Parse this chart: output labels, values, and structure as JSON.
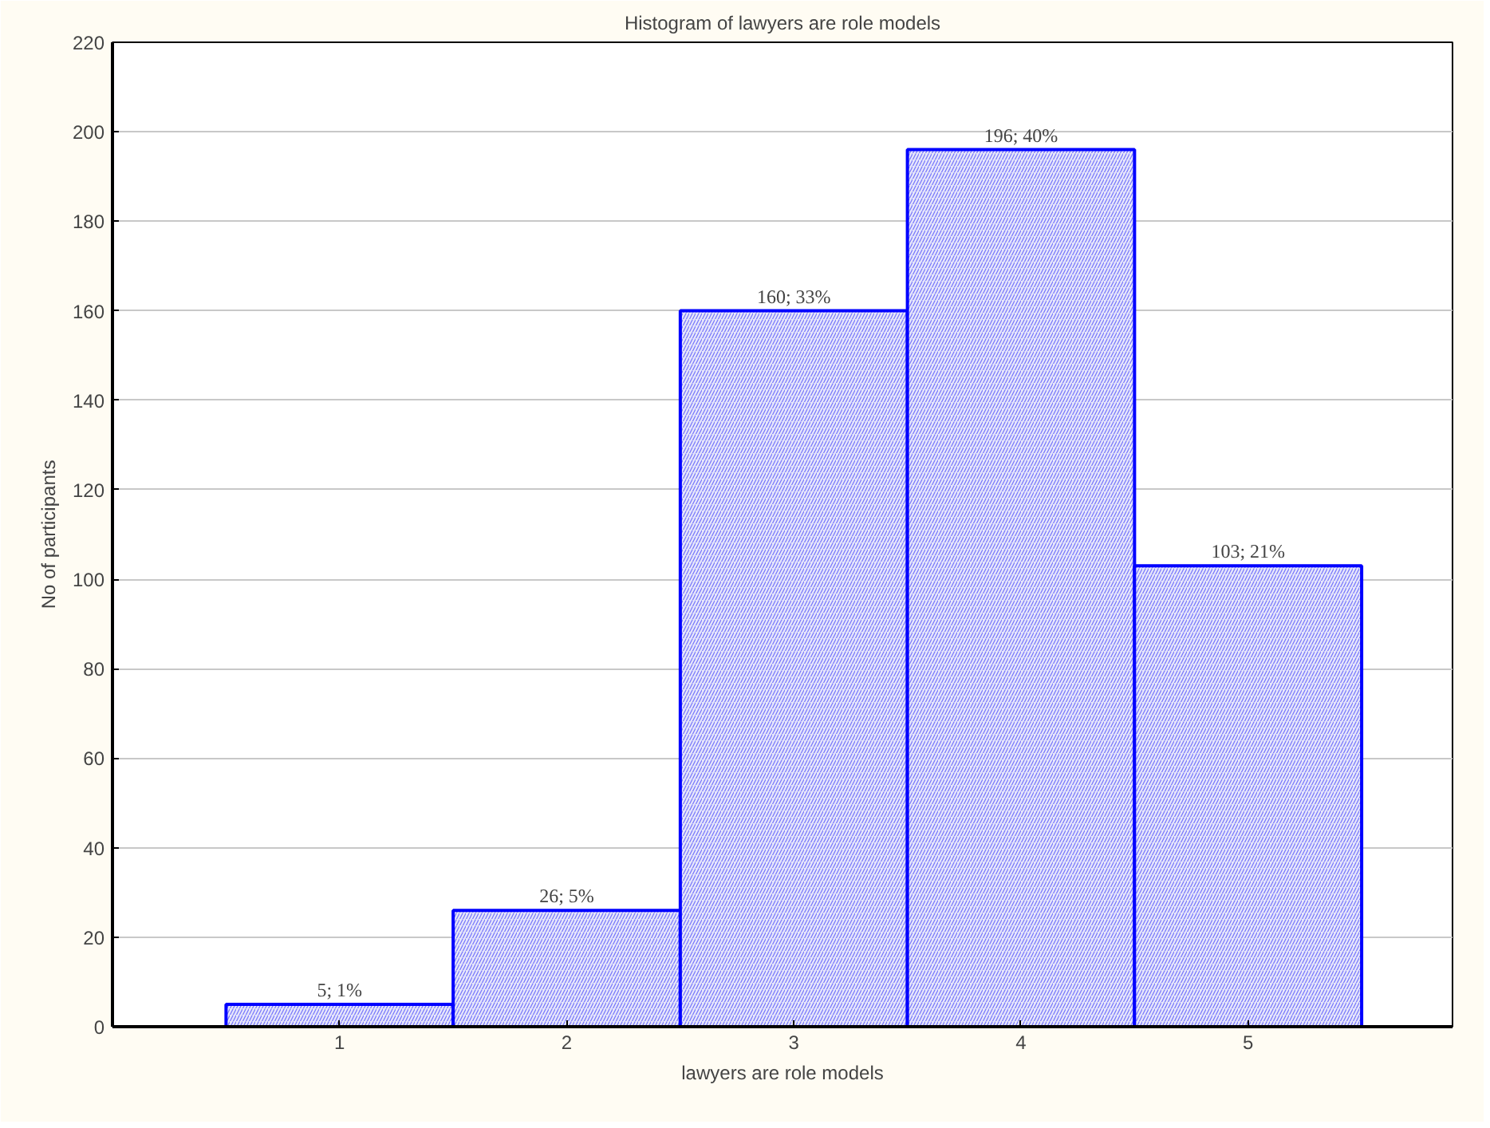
{
  "chart_data": {
    "type": "histogram",
    "title": "Histogram of lawyers are role models",
    "xlabel": "lawyers are role models",
    "ylabel": "No of participants",
    "bins": [
      0.5,
      1.5,
      2.5,
      3.5,
      4.5,
      5.5
    ],
    "values": [
      5,
      26,
      160,
      196,
      103
    ],
    "color": "#0000ff",
    "value_labels": [
      "5; 1%",
      "26; 5%",
      "160; 33%",
      "196; 40%",
      "103; 21%"
    ],
    "xlim": [
      0,
      5.9
    ],
    "xticks": [
      1,
      2,
      3,
      4,
      5
    ],
    "ylim": [
      0,
      220
    ],
    "yticks": [
      0,
      20,
      40,
      60,
      80,
      100,
      120,
      140,
      160,
      180,
      200,
      220
    ],
    "grid": "y"
  }
}
